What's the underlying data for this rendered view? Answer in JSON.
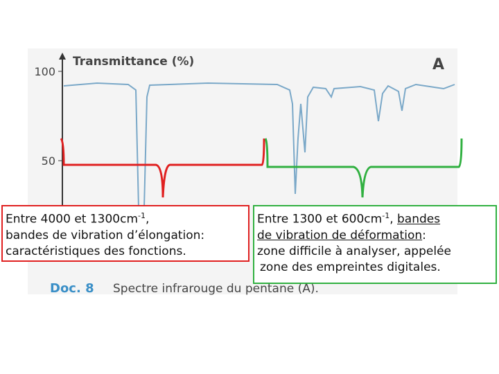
{
  "figure": {
    "y_axis_label": "Transmittance (%)",
    "tick_top": "100",
    "tick_mid": "50",
    "sample": "A",
    "caption_label": "Doc. 8",
    "caption_text": "Spectre infrarouge du pentane (A)."
  },
  "left_box": {
    "line1_start": "Entre 4000 et 1300cm",
    "line1_sup": "-1",
    "line1_end": ",",
    "line2": "bandes de vibration d’élongation:",
    "line3": "caractéristiques des fonctions."
  },
  "right_box": {
    "line1_start": "Entre 1300 et 600cm",
    "line1_sup": "-1",
    "line1_mid": ",",
    "line1_underlined": "bandes",
    "line2_underlined": "de vibration de déformation",
    "line2_end": ":",
    "line3": "zone difficile à analyser, appelée",
    "line4": "zone des empreintes digitales."
  }
}
